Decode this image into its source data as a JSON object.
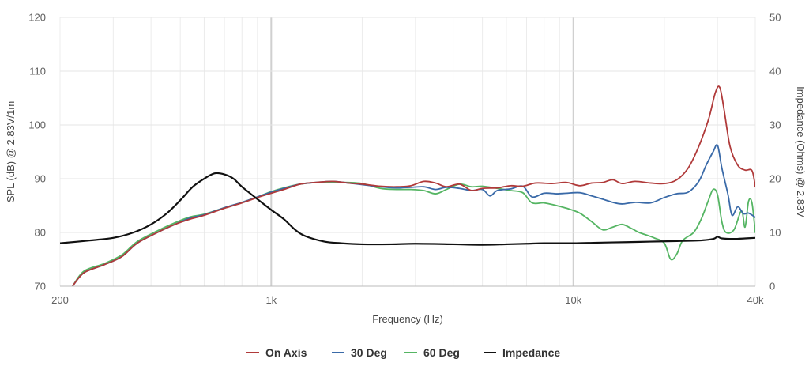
{
  "chart_data": {
    "type": "line",
    "xlabel": "Frequency (Hz)",
    "ylabel": "SPL (dB) @ 2.83V/1m",
    "y2label": "Impedance (Ohms) @ 2.83V",
    "x_scale": "log",
    "xlim": [
      200,
      40000
    ],
    "ylim": [
      70,
      120
    ],
    "y2lim": [
      0,
      50
    ],
    "x_ticks": [
      {
        "value": 200,
        "label": "200"
      },
      {
        "value": 1000,
        "label": "1k"
      },
      {
        "value": 10000,
        "label": "10k"
      },
      {
        "value": 40000,
        "label": "40k"
      }
    ],
    "y_ticks": [
      70,
      80,
      90,
      100,
      110,
      120
    ],
    "y2_ticks": [
      0,
      10,
      20,
      30,
      40,
      50
    ],
    "grid": true,
    "legend_position": "bottom-center",
    "series": [
      {
        "name": "On Axis",
        "color": "#b03a3a",
        "axis": "left",
        "points": [
          [
            220,
            70
          ],
          [
            240,
            72.5
          ],
          [
            280,
            74
          ],
          [
            320,
            75.5
          ],
          [
            360,
            78
          ],
          [
            420,
            80
          ],
          [
            480,
            81.5
          ],
          [
            540,
            82.5
          ],
          [
            600,
            83.2
          ],
          [
            700,
            84.5
          ],
          [
            800,
            85.5
          ],
          [
            900,
            86.5
          ],
          [
            1000,
            87.3
          ],
          [
            1100,
            88
          ],
          [
            1250,
            89
          ],
          [
            1400,
            89.3
          ],
          [
            1600,
            89.5
          ],
          [
            1800,
            89.2
          ],
          [
            2000,
            89
          ],
          [
            2300,
            88.6
          ],
          [
            2600,
            88.5
          ],
          [
            2900,
            88.7
          ],
          [
            3200,
            89.5
          ],
          [
            3500,
            89.2
          ],
          [
            3800,
            88.5
          ],
          [
            4200,
            89
          ],
          [
            4600,
            87.8
          ],
          [
            5000,
            88.2
          ],
          [
            5600,
            88.3
          ],
          [
            6200,
            88.7
          ],
          [
            6800,
            88.6
          ],
          [
            7500,
            89.2
          ],
          [
            8500,
            89.1
          ],
          [
            9500,
            89.3
          ],
          [
            10500,
            88.7
          ],
          [
            11500,
            89.2
          ],
          [
            12500,
            89.3
          ],
          [
            13500,
            89.8
          ],
          [
            14500,
            89.1
          ],
          [
            16000,
            89.5
          ],
          [
            18000,
            89.2
          ],
          [
            20000,
            89.1
          ],
          [
            22000,
            89.8
          ],
          [
            24000,
            92
          ],
          [
            26000,
            96
          ],
          [
            28000,
            101
          ],
          [
            29500,
            106
          ],
          [
            30500,
            107
          ],
          [
            31500,
            103
          ],
          [
            33000,
            96
          ],
          [
            35000,
            92.5
          ],
          [
            37000,
            91.6
          ],
          [
            39000,
            91.5
          ],
          [
            40000,
            88.5
          ]
        ]
      },
      {
        "name": "30 Deg",
        "color": "#3a6aa8",
        "axis": "left",
        "points": [
          [
            220,
            70
          ],
          [
            240,
            72.5
          ],
          [
            280,
            74
          ],
          [
            320,
            75.5
          ],
          [
            360,
            78
          ],
          [
            420,
            80
          ],
          [
            480,
            81.5
          ],
          [
            540,
            82.7
          ],
          [
            600,
            83.3
          ],
          [
            700,
            84.6
          ],
          [
            800,
            85.6
          ],
          [
            900,
            86.6
          ],
          [
            1000,
            87.5
          ],
          [
            1100,
            88.2
          ],
          [
            1250,
            89
          ],
          [
            1400,
            89.3
          ],
          [
            1600,
            89.5
          ],
          [
            1800,
            89.2
          ],
          [
            2000,
            88.9
          ],
          [
            2300,
            88.5
          ],
          [
            2600,
            88.3
          ],
          [
            2900,
            88.4
          ],
          [
            3200,
            88.5
          ],
          [
            3500,
            88
          ],
          [
            3800,
            88.4
          ],
          [
            4200,
            88.2
          ],
          [
            4600,
            87.8
          ],
          [
            5000,
            88
          ],
          [
            5300,
            86.8
          ],
          [
            5600,
            87.8
          ],
          [
            6200,
            88.1
          ],
          [
            6800,
            88.6
          ],
          [
            7300,
            86.6
          ],
          [
            8000,
            87.3
          ],
          [
            8800,
            87.2
          ],
          [
            9500,
            87.3
          ],
          [
            10500,
            87.4
          ],
          [
            11500,
            86.8
          ],
          [
            12500,
            86.2
          ],
          [
            13500,
            85.6
          ],
          [
            14500,
            85.3
          ],
          [
            16000,
            85.6
          ],
          [
            18000,
            85.5
          ],
          [
            20000,
            86.5
          ],
          [
            22000,
            87.2
          ],
          [
            24000,
            87.5
          ],
          [
            26000,
            89.5
          ],
          [
            27500,
            92.5
          ],
          [
            29000,
            95
          ],
          [
            30000,
            96.2
          ],
          [
            31000,
            92
          ],
          [
            32500,
            87
          ],
          [
            33500,
            83.2
          ],
          [
            35000,
            84.8
          ],
          [
            36500,
            83.5
          ],
          [
            38000,
            83.6
          ],
          [
            40000,
            82.8
          ]
        ]
      },
      {
        "name": "60 Deg",
        "color": "#55b563",
        "axis": "left",
        "points": [
          [
            220,
            70
          ],
          [
            240,
            72.8
          ],
          [
            280,
            74.2
          ],
          [
            320,
            75.8
          ],
          [
            360,
            78.3
          ],
          [
            420,
            80.3
          ],
          [
            480,
            81.8
          ],
          [
            540,
            82.9
          ],
          [
            600,
            83.4
          ],
          [
            700,
            84.6
          ],
          [
            800,
            85.6
          ],
          [
            900,
            86.6
          ],
          [
            1000,
            87.6
          ],
          [
            1100,
            88.3
          ],
          [
            1250,
            89
          ],
          [
            1400,
            89.3
          ],
          [
            1600,
            89.3
          ],
          [
            1800,
            89.3
          ],
          [
            2000,
            89.1
          ],
          [
            2300,
            88.2
          ],
          [
            2600,
            88
          ],
          [
            2900,
            88
          ],
          [
            3200,
            87.8
          ],
          [
            3500,
            87.2
          ],
          [
            3800,
            88
          ],
          [
            4200,
            89
          ],
          [
            4600,
            88.5
          ],
          [
            5000,
            88.6
          ],
          [
            5600,
            88.2
          ],
          [
            6200,
            87.8
          ],
          [
            6800,
            87.4
          ],
          [
            7300,
            85.5
          ],
          [
            8000,
            85.5
          ],
          [
            8800,
            85
          ],
          [
            9500,
            84.5
          ],
          [
            10500,
            83.6
          ],
          [
            11500,
            82
          ],
          [
            12500,
            80.5
          ],
          [
            13500,
            81
          ],
          [
            14500,
            81.5
          ],
          [
            15500,
            80.8
          ],
          [
            16500,
            80
          ],
          [
            17500,
            79.5
          ],
          [
            18500,
            79
          ],
          [
            20000,
            78
          ],
          [
            21000,
            75
          ],
          [
            22000,
            76
          ],
          [
            23000,
            78.5
          ],
          [
            25000,
            80
          ],
          [
            26500,
            82.5
          ],
          [
            28000,
            86
          ],
          [
            29000,
            88
          ],
          [
            30000,
            87
          ],
          [
            31000,
            82
          ],
          [
            32000,
            80
          ],
          [
            34000,
            80.5
          ],
          [
            36000,
            84
          ],
          [
            37000,
            81
          ],
          [
            38000,
            85.8
          ],
          [
            39000,
            85.5
          ],
          [
            40000,
            80
          ]
        ]
      },
      {
        "name": "Impedance",
        "color": "#111111",
        "axis": "right",
        "points": [
          [
            200,
            8
          ],
          [
            250,
            8.5
          ],
          [
            300,
            9
          ],
          [
            350,
            10
          ],
          [
            400,
            11.5
          ],
          [
            450,
            13.5
          ],
          [
            500,
            16
          ],
          [
            550,
            18.5
          ],
          [
            600,
            20
          ],
          [
            650,
            21
          ],
          [
            700,
            20.8
          ],
          [
            750,
            20
          ],
          [
            800,
            18.5
          ],
          [
            900,
            16.2
          ],
          [
            1000,
            14.2
          ],
          [
            1100,
            12.5
          ],
          [
            1200,
            10.5
          ],
          [
            1300,
            9.3
          ],
          [
            1500,
            8.3
          ],
          [
            1700,
            8
          ],
          [
            2000,
            7.8
          ],
          [
            2500,
            7.8
          ],
          [
            3000,
            7.9
          ],
          [
            4000,
            7.8
          ],
          [
            5000,
            7.7
          ],
          [
            6000,
            7.8
          ],
          [
            7000,
            7.9
          ],
          [
            8000,
            8
          ],
          [
            10000,
            8
          ],
          [
            12000,
            8.1
          ],
          [
            15000,
            8.2
          ],
          [
            18000,
            8.3
          ],
          [
            22000,
            8.4
          ],
          [
            26000,
            8.5
          ],
          [
            29000,
            8.8
          ],
          [
            30000,
            9.2
          ],
          [
            31000,
            8.9
          ],
          [
            34000,
            8.8
          ],
          [
            37000,
            8.9
          ],
          [
            40000,
            9
          ]
        ]
      }
    ]
  }
}
